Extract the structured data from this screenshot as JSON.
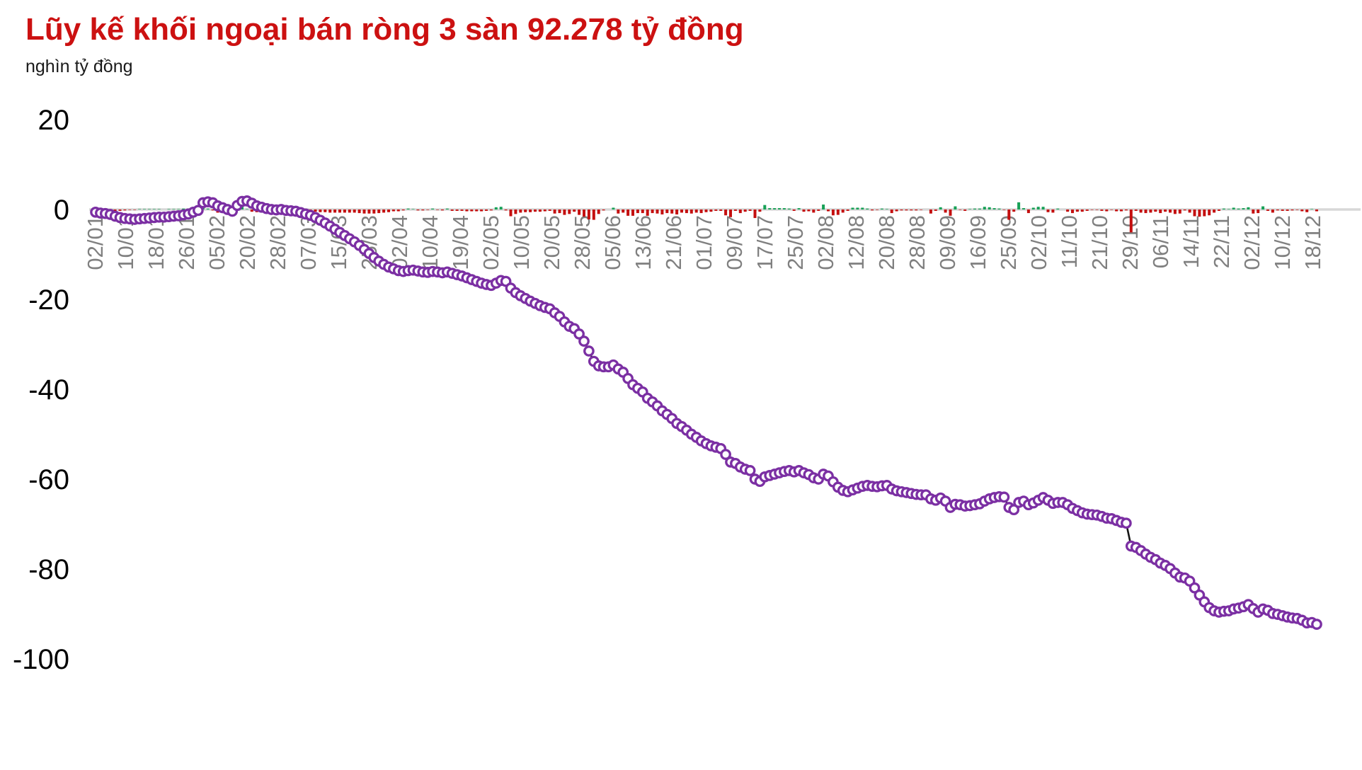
{
  "title": {
    "text": "Lũy kế khối ngoại bán ròng 3 sàn 92.278 tỷ đồng",
    "color": "#cc1111"
  },
  "subtitle": "nghìn tỷ đồng",
  "chart_data": {
    "type": "line",
    "title": "Lũy kế khối ngoại bán ròng 3 sàn 92.278 tỷ đồng",
    "ylabel": "nghìn tỷ đồng",
    "ylim": [
      -100,
      20
    ],
    "yticks": [
      20,
      0,
      -20,
      -40,
      -60,
      -80,
      -100
    ],
    "grid": "zero-line-only",
    "legend": "none",
    "final_value": -92.278,
    "x_tick_labels": [
      "02/01",
      "10/01",
      "18/01",
      "26/01",
      "05/02",
      "20/02",
      "28/02",
      "07/03",
      "15/03",
      "25/03",
      "02/04",
      "10/04",
      "19/04",
      "02/05",
      "10/05",
      "20/05",
      "28/05",
      "05/06",
      "13/06",
      "21/06",
      "01/07",
      "09/07",
      "17/07",
      "25/07",
      "02/08",
      "12/08",
      "20/08",
      "28/08",
      "09/09",
      "16/09",
      "25/09",
      "02/10",
      "11/10",
      "21/10",
      "29/10",
      "06/11",
      "14/11",
      "22/11",
      "02/12",
      "10/12",
      "18/12"
    ],
    "series": [
      {
        "name": "cumulative-net-foreign-selling",
        "type": "line",
        "marker": "circle",
        "marker_color": "#7b2fa3",
        "marker_fill": "#fdfcfe",
        "line_color": "#151515",
        "values": [
          -0.6,
          -0.8,
          -0.9,
          -1.1,
          -1.5,
          -1.8,
          -2.0,
          -2.1,
          -2.2,
          -2.1,
          -2.0,
          -1.9,
          -1.8,
          -1.7,
          -1.7,
          -1.6,
          -1.5,
          -1.4,
          -1.2,
          -1.0,
          -0.6,
          -0.2,
          1.5,
          1.7,
          1.5,
          0.8,
          0.4,
          0.0,
          -0.4,
          0.9,
          1.8,
          1.9,
          1.4,
          0.8,
          0.5,
          0.2,
          0.0,
          -0.1,
          0.0,
          -0.2,
          -0.3,
          -0.4,
          -0.7,
          -1.0,
          -1.3,
          -1.8,
          -2.4,
          -3.0,
          -3.7,
          -4.4,
          -5.1,
          -5.8,
          -6.5,
          -7.2,
          -8.0,
          -8.9,
          -9.8,
          -10.7,
          -11.5,
          -12.2,
          -12.8,
          -13.2,
          -13.6,
          -13.8,
          -13.6,
          -13.5,
          -13.7,
          -13.9,
          -14.0,
          -13.8,
          -13.9,
          -14.1,
          -13.9,
          -14.2,
          -14.5,
          -14.8,
          -15.2,
          -15.6,
          -16.0,
          -16.4,
          -16.7,
          -16.9,
          -16.4,
          -15.8,
          -16.0,
          -17.5,
          -18.5,
          -19.2,
          -19.8,
          -20.4,
          -20.9,
          -21.4,
          -21.8,
          -22.1,
          -23.0,
          -23.8,
          -25.0,
          -26.0,
          -26.5,
          -27.7,
          -29.3,
          -31.5,
          -33.8,
          -34.8,
          -35.0,
          -35.0,
          -34.6,
          -35.5,
          -36.2,
          -37.6,
          -39.0,
          -39.8,
          -40.6,
          -42.0,
          -42.8,
          -43.7,
          -44.8,
          -45.6,
          -46.5,
          -47.6,
          -48.3,
          -49.1,
          -50.0,
          -50.7,
          -51.5,
          -52.1,
          -52.6,
          -52.9,
          -53.2,
          -54.5,
          -56.2,
          -56.5,
          -57.3,
          -57.8,
          -58.1,
          -60.0,
          -60.5,
          -59.5,
          -59.2,
          -58.9,
          -58.6,
          -58.3,
          -58.1,
          -58.4,
          -58.1,
          -58.6,
          -59.0,
          -59.7,
          -60.0,
          -58.9,
          -59.3,
          -60.6,
          -61.8,
          -62.5,
          -62.8,
          -62.4,
          -62.0,
          -61.6,
          -61.4,
          -61.6,
          -61.7,
          -61.5,
          -61.4,
          -62.2,
          -62.6,
          -62.8,
          -63.0,
          -63.2,
          -63.4,
          -63.5,
          -63.5,
          -64.4,
          -64.7,
          -64.2,
          -64.9,
          -66.3,
          -65.6,
          -65.7,
          -66.0,
          -65.9,
          -65.7,
          -65.5,
          -64.9,
          -64.4,
          -64.1,
          -63.9,
          -64.0,
          -66.3,
          -66.8,
          -65.2,
          -64.9,
          -65.7,
          -65.3,
          -64.7,
          -64.1,
          -64.7,
          -65.4,
          -65.2,
          -65.2,
          -65.7,
          -66.5,
          -67.0,
          -67.5,
          -67.8,
          -67.9,
          -68.0,
          -68.3,
          -68.7,
          -68.8,
          -69.2,
          -69.6,
          -69.8,
          -74.9,
          -75.2,
          -75.9,
          -76.7,
          -77.4,
          -77.9,
          -78.7,
          -79.2,
          -79.9,
          -80.9,
          -81.8,
          -82.0,
          -82.7,
          -84.2,
          -85.8,
          -87.3,
          -88.6,
          -89.3,
          -89.6,
          -89.4,
          -89.3,
          -88.9,
          -88.7,
          -88.4,
          -87.9,
          -88.8,
          -89.6,
          -88.9,
          -89.2,
          -89.9,
          -90.1,
          -90.4,
          -90.7,
          -90.9,
          -91.0,
          -91.4,
          -92.0,
          -91.9,
          -92.3
        ]
      },
      {
        "name": "daily-net-value-bars",
        "type": "bar",
        "derived_from": "difference of consecutive cumulative values",
        "positive_color": "#18a157",
        "negative_color": "#c40f0f"
      }
    ]
  },
  "colors": {
    "title_red": "#cc1111",
    "axis_label_black": "#000000",
    "x_label_gray": "#808080",
    "zero_line_gray": "#d8d8d8",
    "marker_purple": "#7b2fa3",
    "bar_red": "#c40f0f",
    "bar_green": "#18a157"
  }
}
